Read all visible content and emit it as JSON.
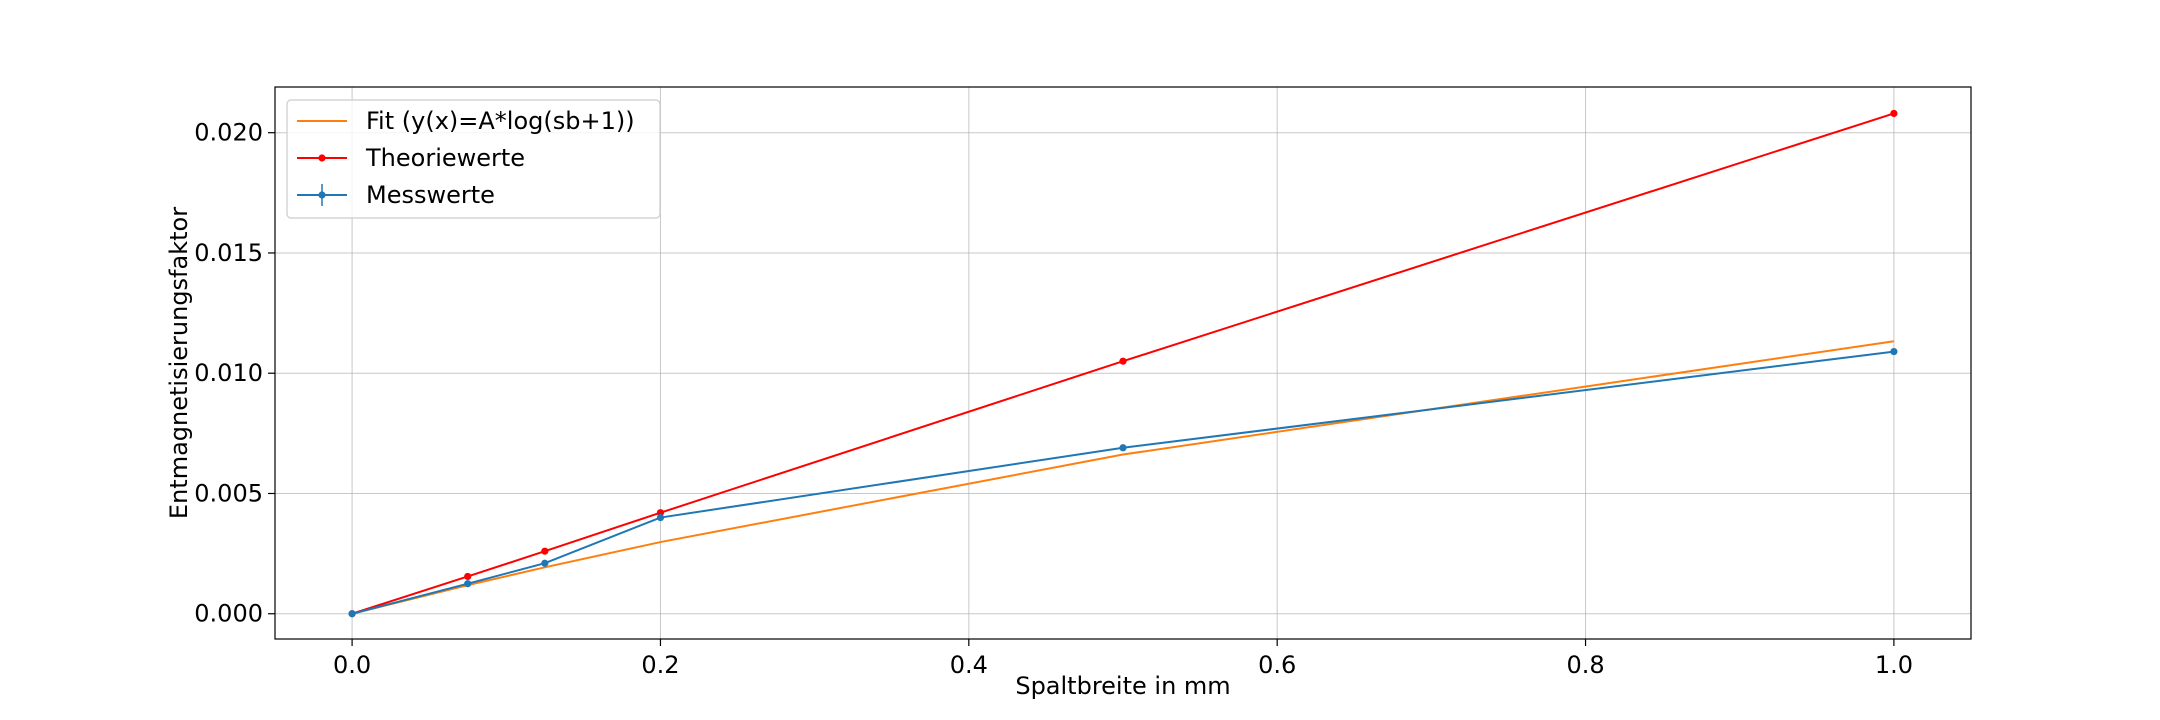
{
  "chart_data": {
    "type": "line",
    "title": "",
    "xlabel": "Spaltbreite in mm",
    "ylabel": "Entmagnetisierungsfaktor",
    "xlim": [
      -0.05,
      1.05
    ],
    "ylim": [
      -0.00105,
      0.0219
    ],
    "xticks": [
      0.0,
      0.2,
      0.4,
      0.6,
      0.8,
      1.0
    ],
    "xtick_labels": [
      "0.0",
      "0.2",
      "0.4",
      "0.6",
      "0.8",
      "1.0"
    ],
    "yticks": [
      0.0,
      0.005,
      0.01,
      0.015,
      0.02
    ],
    "ytick_labels": [
      "0.000",
      "0.005",
      "0.010",
      "0.015",
      "0.020"
    ],
    "grid": true,
    "legend_position": "top-left",
    "series": [
      {
        "name": "Fit (y(x)=A*log(sb+1))",
        "color": "#ff7f0e",
        "marker": false,
        "x": [
          0.0,
          0.075,
          0.125,
          0.2,
          0.5,
          1.0
        ],
        "y": [
          0.0,
          0.00119,
          0.00193,
          0.00298,
          0.00662,
          0.01133
        ]
      },
      {
        "name": "Theoriewerte",
        "color": "#ff0000",
        "marker": true,
        "x": [
          0.0,
          0.075,
          0.125,
          0.2,
          0.5,
          1.0
        ],
        "y": [
          0.0,
          0.00155,
          0.0026,
          0.0042,
          0.0105,
          0.0208
        ]
      },
      {
        "name": "Messwerte",
        "color": "#1f77b4",
        "marker": true,
        "errorbar": true,
        "x": [
          0.0,
          0.075,
          0.125,
          0.2,
          0.5,
          1.0
        ],
        "y": [
          0.0,
          0.00125,
          0.0021,
          0.004,
          0.0069,
          0.0109
        ]
      }
    ]
  }
}
